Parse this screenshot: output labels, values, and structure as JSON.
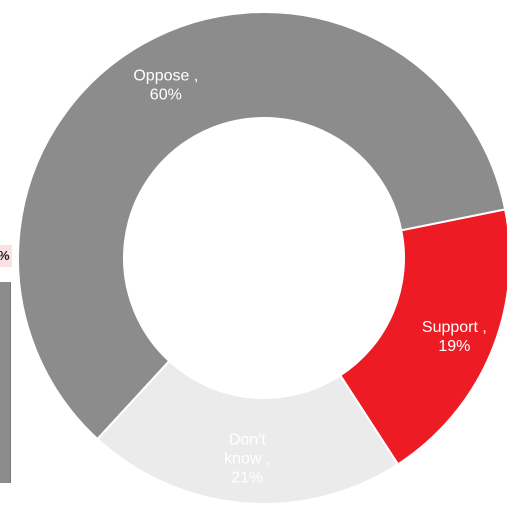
{
  "chart_data": {
    "type": "pie",
    "donut": true,
    "slices": [
      {
        "label": "Support",
        "value": 19,
        "color": "#ed1c24",
        "text_color": "#ffffff",
        "label_lines": [
          "Support ,",
          "19%"
        ]
      },
      {
        "label": "Oppose",
        "value": 60,
        "color": "#8c8c8c",
        "text_color": "#ffffff",
        "label_lines": [
          "Oppose ,",
          "60%"
        ]
      },
      {
        "label": "Don't know",
        "value": 21,
        "color": "#ebebeb",
        "text_color": "#222222",
        "label_lines": [
          "Don't",
          "know ,",
          "21%"
        ]
      }
    ]
  },
  "edge_fragment": {
    "text": "%",
    "bg_color": "#fbe1e3",
    "bar_color": "#8c8c8c"
  }
}
